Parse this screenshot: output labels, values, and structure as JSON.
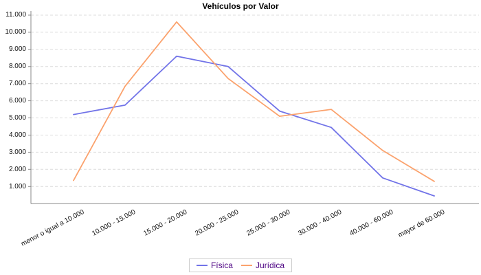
{
  "chart": {
    "title": "Vehículos por Valor",
    "legend_labels": [
      "Física",
      "Jurídica"
    ],
    "legend_text_color": "#4b0082"
  },
  "chart_data": {
    "type": "line",
    "title": "Vehículos por Valor",
    "categories": [
      "menor o igual a 10.000",
      "10.000 - 15.000",
      "15.000 - 20.000",
      "20.000 - 25.000",
      "25.000 - 30.000",
      "30.000 - 40.000",
      "40.000 - 60.000",
      "mayor de 60.000"
    ],
    "series": [
      {
        "name": "Física",
        "color": "#7173e8",
        "values": [
          5200,
          5750,
          8600,
          8000,
          5400,
          4450,
          1500,
          450
        ]
      },
      {
        "name": "Jurídica",
        "color": "#fba26d",
        "values": [
          1350,
          6850,
          10600,
          7300,
          5100,
          5500,
          3100,
          1300
        ]
      }
    ],
    "y_tick_labels": [
      "1.000",
      "2.000",
      "3.000",
      "4.000",
      "5.000",
      "6.000",
      "7.000",
      "8.000",
      "9.000",
      "10.000",
      "11.000"
    ],
    "y_tick_values": [
      1000,
      2000,
      3000,
      4000,
      5000,
      6000,
      7000,
      8000,
      9000,
      10000,
      11000
    ],
    "ylim": [
      0,
      11300
    ],
    "xlabel": "",
    "ylabel": "",
    "grid": "horizontal-dashed",
    "grid_color": "#dcdcdc",
    "axis_color": "#8a8a8a",
    "legend_position": "bottom"
  }
}
